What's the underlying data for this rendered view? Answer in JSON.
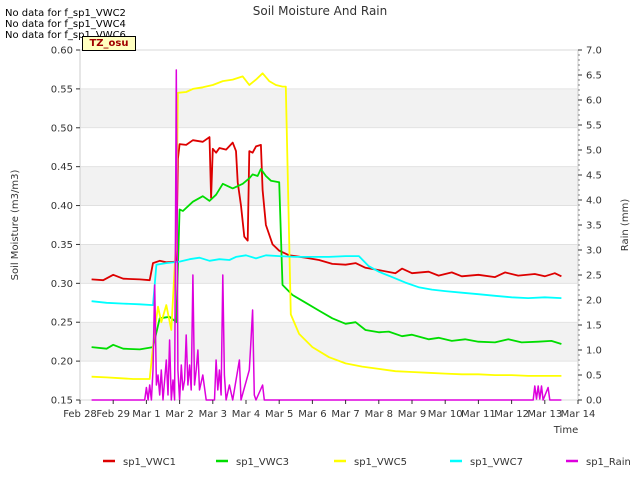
{
  "notes": [
    "No data for f_sp1_VWC2",
    "No data for f_sp1_VWC4",
    "No data for f_sp1_VWC6"
  ],
  "tz_label": "TZ_osu",
  "chart_data": {
    "type": "line",
    "title": "Soil Moisture And Rain",
    "xlabel": "Time",
    "ylabel": "Soil Moisture (m3/m3)",
    "y2label": "Rain (mm)",
    "x_ticks": [
      "Feb 28",
      "Feb 29",
      "Mar 1",
      "Mar 2",
      "Mar 3",
      "Mar 4",
      "Mar 5",
      "Mar 6",
      "Mar 7",
      "Mar 8",
      "Mar 9",
      "Mar 10",
      "Mar 11",
      "Mar 12",
      "Mar 13",
      "Mar 14"
    ],
    "xlim": [
      0,
      15
    ],
    "ylim": [
      0.15,
      0.6
    ],
    "y_ticks": [
      "0.15",
      "0.20",
      "0.25",
      "0.30",
      "0.35",
      "0.40",
      "0.45",
      "0.50",
      "0.55",
      "0.60"
    ],
    "y2lim": [
      0,
      7
    ],
    "y2_ticks": [
      "0.0",
      "0.5",
      "1.0",
      "1.5",
      "2.0",
      "2.5",
      "3.0",
      "3.5",
      "4.0",
      "4.5",
      "5.0",
      "5.5",
      "6.0",
      "6.5",
      "7.0"
    ],
    "legend_position": "bottom",
    "series": [
      {
        "name": "sp1_VWC1",
        "color": "#dd0000",
        "axis": "left",
        "points": [
          [
            0.35,
            0.305
          ],
          [
            0.7,
            0.304
          ],
          [
            1.0,
            0.311
          ],
          [
            1.3,
            0.306
          ],
          [
            1.8,
            0.305
          ],
          [
            2.1,
            0.304
          ],
          [
            2.2,
            0.326
          ],
          [
            2.4,
            0.329
          ],
          [
            2.6,
            0.327
          ],
          [
            2.9,
            0.328
          ],
          [
            2.95,
            0.46
          ],
          [
            3.0,
            0.479
          ],
          [
            3.2,
            0.478
          ],
          [
            3.4,
            0.484
          ],
          [
            3.7,
            0.482
          ],
          [
            3.9,
            0.488
          ],
          [
            3.95,
            0.41
          ],
          [
            4.0,
            0.473
          ],
          [
            4.1,
            0.468
          ],
          [
            4.2,
            0.474
          ],
          [
            4.4,
            0.472
          ],
          [
            4.6,
            0.481
          ],
          [
            4.7,
            0.47
          ],
          [
            4.75,
            0.43
          ],
          [
            4.85,
            0.4
          ],
          [
            4.95,
            0.36
          ],
          [
            5.05,
            0.355
          ],
          [
            5.1,
            0.47
          ],
          [
            5.2,
            0.468
          ],
          [
            5.3,
            0.476
          ],
          [
            5.45,
            0.478
          ],
          [
            5.5,
            0.42
          ],
          [
            5.6,
            0.375
          ],
          [
            5.8,
            0.35
          ],
          [
            6.0,
            0.342
          ],
          [
            6.3,
            0.336
          ],
          [
            6.8,
            0.333
          ],
          [
            7.2,
            0.33
          ],
          [
            7.6,
            0.325
          ],
          [
            8.0,
            0.324
          ],
          [
            8.3,
            0.326
          ],
          [
            8.6,
            0.32
          ],
          [
            9.0,
            0.317
          ],
          [
            9.5,
            0.313
          ],
          [
            9.7,
            0.319
          ],
          [
            10.0,
            0.313
          ],
          [
            10.5,
            0.315
          ],
          [
            10.8,
            0.31
          ],
          [
            11.2,
            0.314
          ],
          [
            11.5,
            0.309
          ],
          [
            12.0,
            0.311
          ],
          [
            12.5,
            0.308
          ],
          [
            12.8,
            0.314
          ],
          [
            13.2,
            0.31
          ],
          [
            13.7,
            0.312
          ],
          [
            14.0,
            0.309
          ],
          [
            14.3,
            0.313
          ],
          [
            14.5,
            0.309
          ]
        ]
      },
      {
        "name": "sp1_VWC3",
        "color": "#00dd00",
        "axis": "left",
        "points": [
          [
            0.35,
            0.218
          ],
          [
            0.8,
            0.216
          ],
          [
            1.0,
            0.221
          ],
          [
            1.3,
            0.216
          ],
          [
            1.8,
            0.215
          ],
          [
            2.2,
            0.218
          ],
          [
            2.4,
            0.255
          ],
          [
            2.7,
            0.257
          ],
          [
            2.9,
            0.25
          ],
          [
            3.0,
            0.395
          ],
          [
            3.1,
            0.393
          ],
          [
            3.4,
            0.405
          ],
          [
            3.7,
            0.412
          ],
          [
            3.9,
            0.406
          ],
          [
            4.1,
            0.414
          ],
          [
            4.3,
            0.428
          ],
          [
            4.6,
            0.422
          ],
          [
            4.9,
            0.428
          ],
          [
            5.1,
            0.435
          ],
          [
            5.2,
            0.44
          ],
          [
            5.35,
            0.438
          ],
          [
            5.45,
            0.447
          ],
          [
            5.6,
            0.438
          ],
          [
            5.75,
            0.432
          ],
          [
            6.0,
            0.43
          ],
          [
            6.1,
            0.298
          ],
          [
            6.4,
            0.285
          ],
          [
            6.8,
            0.275
          ],
          [
            7.2,
            0.265
          ],
          [
            7.6,
            0.255
          ],
          [
            8.0,
            0.248
          ],
          [
            8.3,
            0.25
          ],
          [
            8.6,
            0.24
          ],
          [
            9.0,
            0.237
          ],
          [
            9.3,
            0.238
          ],
          [
            9.7,
            0.232
          ],
          [
            10.0,
            0.234
          ],
          [
            10.5,
            0.228
          ],
          [
            10.8,
            0.23
          ],
          [
            11.2,
            0.226
          ],
          [
            11.6,
            0.228
          ],
          [
            12.0,
            0.225
          ],
          [
            12.5,
            0.224
          ],
          [
            12.9,
            0.228
          ],
          [
            13.3,
            0.224
          ],
          [
            13.8,
            0.225
          ],
          [
            14.2,
            0.226
          ],
          [
            14.5,
            0.222
          ]
        ]
      },
      {
        "name": "sp1_VWC5",
        "color": "#ffff00",
        "axis": "left",
        "points": [
          [
            0.35,
            0.18
          ],
          [
            0.8,
            0.179
          ],
          [
            1.2,
            0.178
          ],
          [
            1.6,
            0.177
          ],
          [
            2.1,
            0.177
          ],
          [
            2.25,
            0.24
          ],
          [
            2.35,
            0.27
          ],
          [
            2.45,
            0.25
          ],
          [
            2.6,
            0.272
          ],
          [
            2.75,
            0.24
          ],
          [
            2.9,
            0.36
          ],
          [
            2.95,
            0.545
          ],
          [
            3.2,
            0.546
          ],
          [
            3.4,
            0.55
          ],
          [
            3.7,
            0.552
          ],
          [
            4.0,
            0.555
          ],
          [
            4.3,
            0.56
          ],
          [
            4.6,
            0.562
          ],
          [
            4.9,
            0.566
          ],
          [
            5.1,
            0.555
          ],
          [
            5.3,
            0.562
          ],
          [
            5.5,
            0.57
          ],
          [
            5.7,
            0.56
          ],
          [
            5.9,
            0.555
          ],
          [
            6.1,
            0.553
          ],
          [
            6.2,
            0.553
          ],
          [
            6.35,
            0.26
          ],
          [
            6.6,
            0.235
          ],
          [
            7.0,
            0.218
          ],
          [
            7.5,
            0.205
          ],
          [
            8.0,
            0.197
          ],
          [
            8.5,
            0.193
          ],
          [
            9.0,
            0.19
          ],
          [
            9.5,
            0.187
          ],
          [
            10.0,
            0.186
          ],
          [
            10.5,
            0.185
          ],
          [
            11.0,
            0.184
          ],
          [
            11.5,
            0.183
          ],
          [
            12.0,
            0.183
          ],
          [
            12.5,
            0.182
          ],
          [
            13.0,
            0.182
          ],
          [
            13.5,
            0.181
          ],
          [
            14.0,
            0.181
          ],
          [
            14.5,
            0.181
          ]
        ]
      },
      {
        "name": "sp1_VWC7",
        "color": "#00ffff",
        "axis": "left",
        "points": [
          [
            0.35,
            0.277
          ],
          [
            0.8,
            0.275
          ],
          [
            1.3,
            0.274
          ],
          [
            1.8,
            0.273
          ],
          [
            2.2,
            0.272
          ],
          [
            2.3,
            0.324
          ],
          [
            2.6,
            0.326
          ],
          [
            3.0,
            0.328
          ],
          [
            3.3,
            0.331
          ],
          [
            3.6,
            0.333
          ],
          [
            3.9,
            0.329
          ],
          [
            4.2,
            0.331
          ],
          [
            4.5,
            0.33
          ],
          [
            4.7,
            0.334
          ],
          [
            5.0,
            0.336
          ],
          [
            5.3,
            0.332
          ],
          [
            5.6,
            0.336
          ],
          [
            6.0,
            0.335
          ],
          [
            6.5,
            0.334
          ],
          [
            7.0,
            0.334
          ],
          [
            7.5,
            0.334
          ],
          [
            8.0,
            0.335
          ],
          [
            8.4,
            0.335
          ],
          [
            8.7,
            0.322
          ],
          [
            9.0,
            0.315
          ],
          [
            9.4,
            0.308
          ],
          [
            9.8,
            0.301
          ],
          [
            10.2,
            0.295
          ],
          [
            10.6,
            0.292
          ],
          [
            11.0,
            0.29
          ],
          [
            11.5,
            0.288
          ],
          [
            12.0,
            0.286
          ],
          [
            12.5,
            0.284
          ],
          [
            13.0,
            0.282
          ],
          [
            13.5,
            0.281
          ],
          [
            14.0,
            0.282
          ],
          [
            14.5,
            0.281
          ]
        ]
      },
      {
        "name": "sp1_Rain",
        "color": "#dd00dd",
        "axis": "right",
        "points": [
          [
            0.35,
            0
          ],
          [
            1.95,
            0
          ],
          [
            2.0,
            0.25
          ],
          [
            2.05,
            0
          ],
          [
            2.1,
            0.3
          ],
          [
            2.15,
            0
          ],
          [
            2.2,
            0.6
          ],
          [
            2.25,
            2.3
          ],
          [
            2.3,
            0.3
          ],
          [
            2.35,
            0.5
          ],
          [
            2.4,
            0.1
          ],
          [
            2.45,
            0.6
          ],
          [
            2.5,
            0
          ],
          [
            2.6,
            0.8
          ],
          [
            2.65,
            0.1
          ],
          [
            2.7,
            1.2
          ],
          [
            2.75,
            0
          ],
          [
            2.8,
            0.4
          ],
          [
            2.85,
            0
          ],
          [
            2.9,
            6.6
          ],
          [
            2.95,
            0.6
          ],
          [
            3.0,
            0
          ],
          [
            3.05,
            0.7
          ],
          [
            3.1,
            0.2
          ],
          [
            3.15,
            0.4
          ],
          [
            3.2,
            1.3
          ],
          [
            3.25,
            0.3
          ],
          [
            3.3,
            0.7
          ],
          [
            3.35,
            0.2
          ],
          [
            3.4,
            2.5
          ],
          [
            3.45,
            0.3
          ],
          [
            3.5,
            0.6
          ],
          [
            3.55,
            1.0
          ],
          [
            3.6,
            0.2
          ],
          [
            3.7,
            0.5
          ],
          [
            3.8,
            0
          ],
          [
            4.05,
            0
          ],
          [
            4.1,
            0.8
          ],
          [
            4.15,
            0.2
          ],
          [
            4.2,
            0.6
          ],
          [
            4.25,
            0.1
          ],
          [
            4.3,
            2.5
          ],
          [
            4.35,
            0.5
          ],
          [
            4.4,
            0
          ],
          [
            4.5,
            0.3
          ],
          [
            4.6,
            0
          ],
          [
            4.8,
            0.8
          ],
          [
            4.85,
            0
          ],
          [
            5.1,
            0.6
          ],
          [
            5.15,
            1.2
          ],
          [
            5.2,
            1.8
          ],
          [
            5.25,
            0.1
          ],
          [
            5.3,
            0
          ],
          [
            5.5,
            0.3
          ],
          [
            5.55,
            0
          ],
          [
            13.65,
            0
          ],
          [
            13.7,
            0.28
          ],
          [
            13.75,
            0.02
          ],
          [
            13.8,
            0.28
          ],
          [
            13.85,
            0.02
          ],
          [
            13.9,
            0.28
          ],
          [
            13.95,
            0
          ],
          [
            14.1,
            0.25
          ],
          [
            14.15,
            0
          ],
          [
            14.5,
            0
          ]
        ]
      }
    ]
  }
}
